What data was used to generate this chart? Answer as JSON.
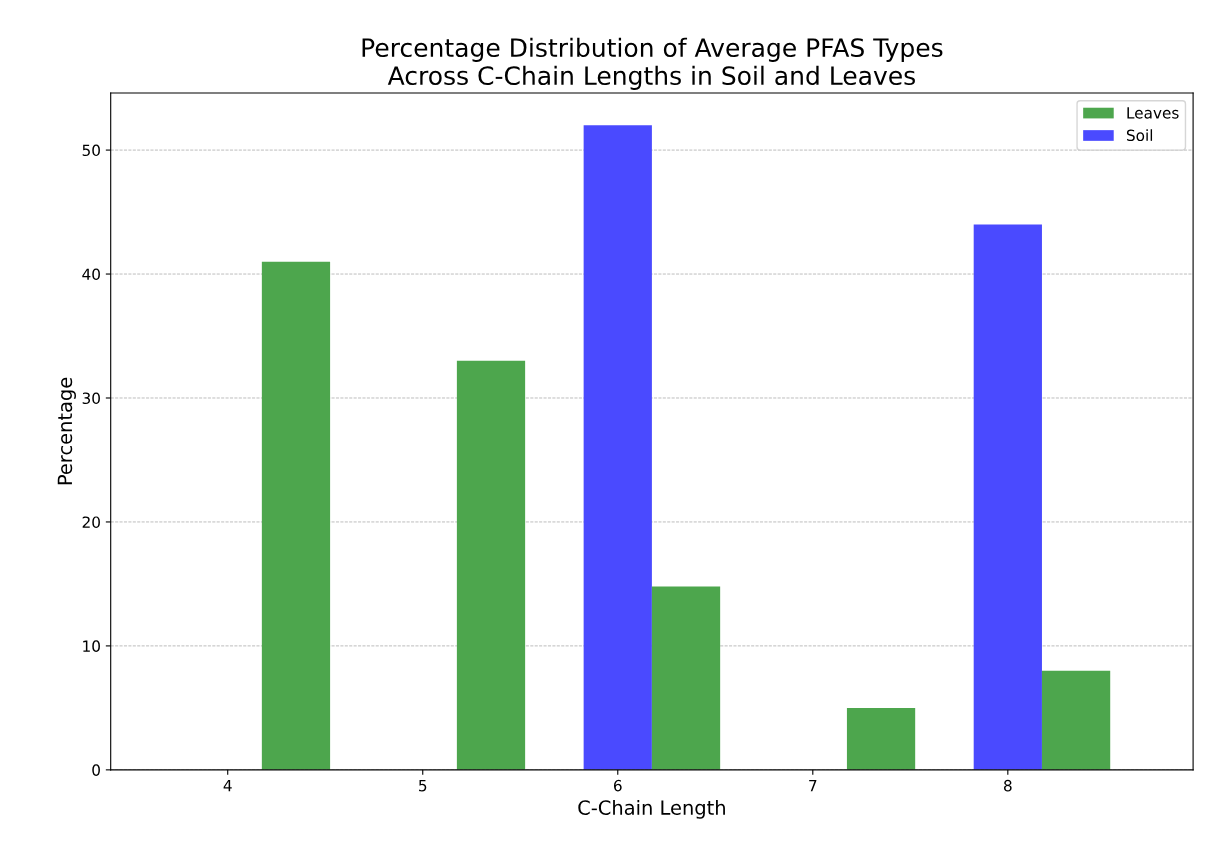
{
  "chart_data": {
    "type": "bar",
    "title": "Percentage Distribution of Average PFAS Types\nAcross C-Chain Lengths in Soil and Leaves",
    "xlabel": "C-Chain Length",
    "ylabel": "Percentage",
    "categories": [
      "4",
      "5",
      "6",
      "7",
      "8"
    ],
    "series": [
      {
        "name": "Soil",
        "color": "#4a4aff",
        "values": [
          0,
          0,
          52,
          0,
          44
        ]
      },
      {
        "name": "Leaves",
        "color": "#4da64d",
        "values": [
          41,
          33,
          14.8,
          5,
          8
        ]
      }
    ],
    "ylim": [
      0,
      54.6
    ],
    "yticks": [
      0,
      10,
      20,
      30,
      40,
      50
    ],
    "grid": "y",
    "legend": "top right"
  }
}
